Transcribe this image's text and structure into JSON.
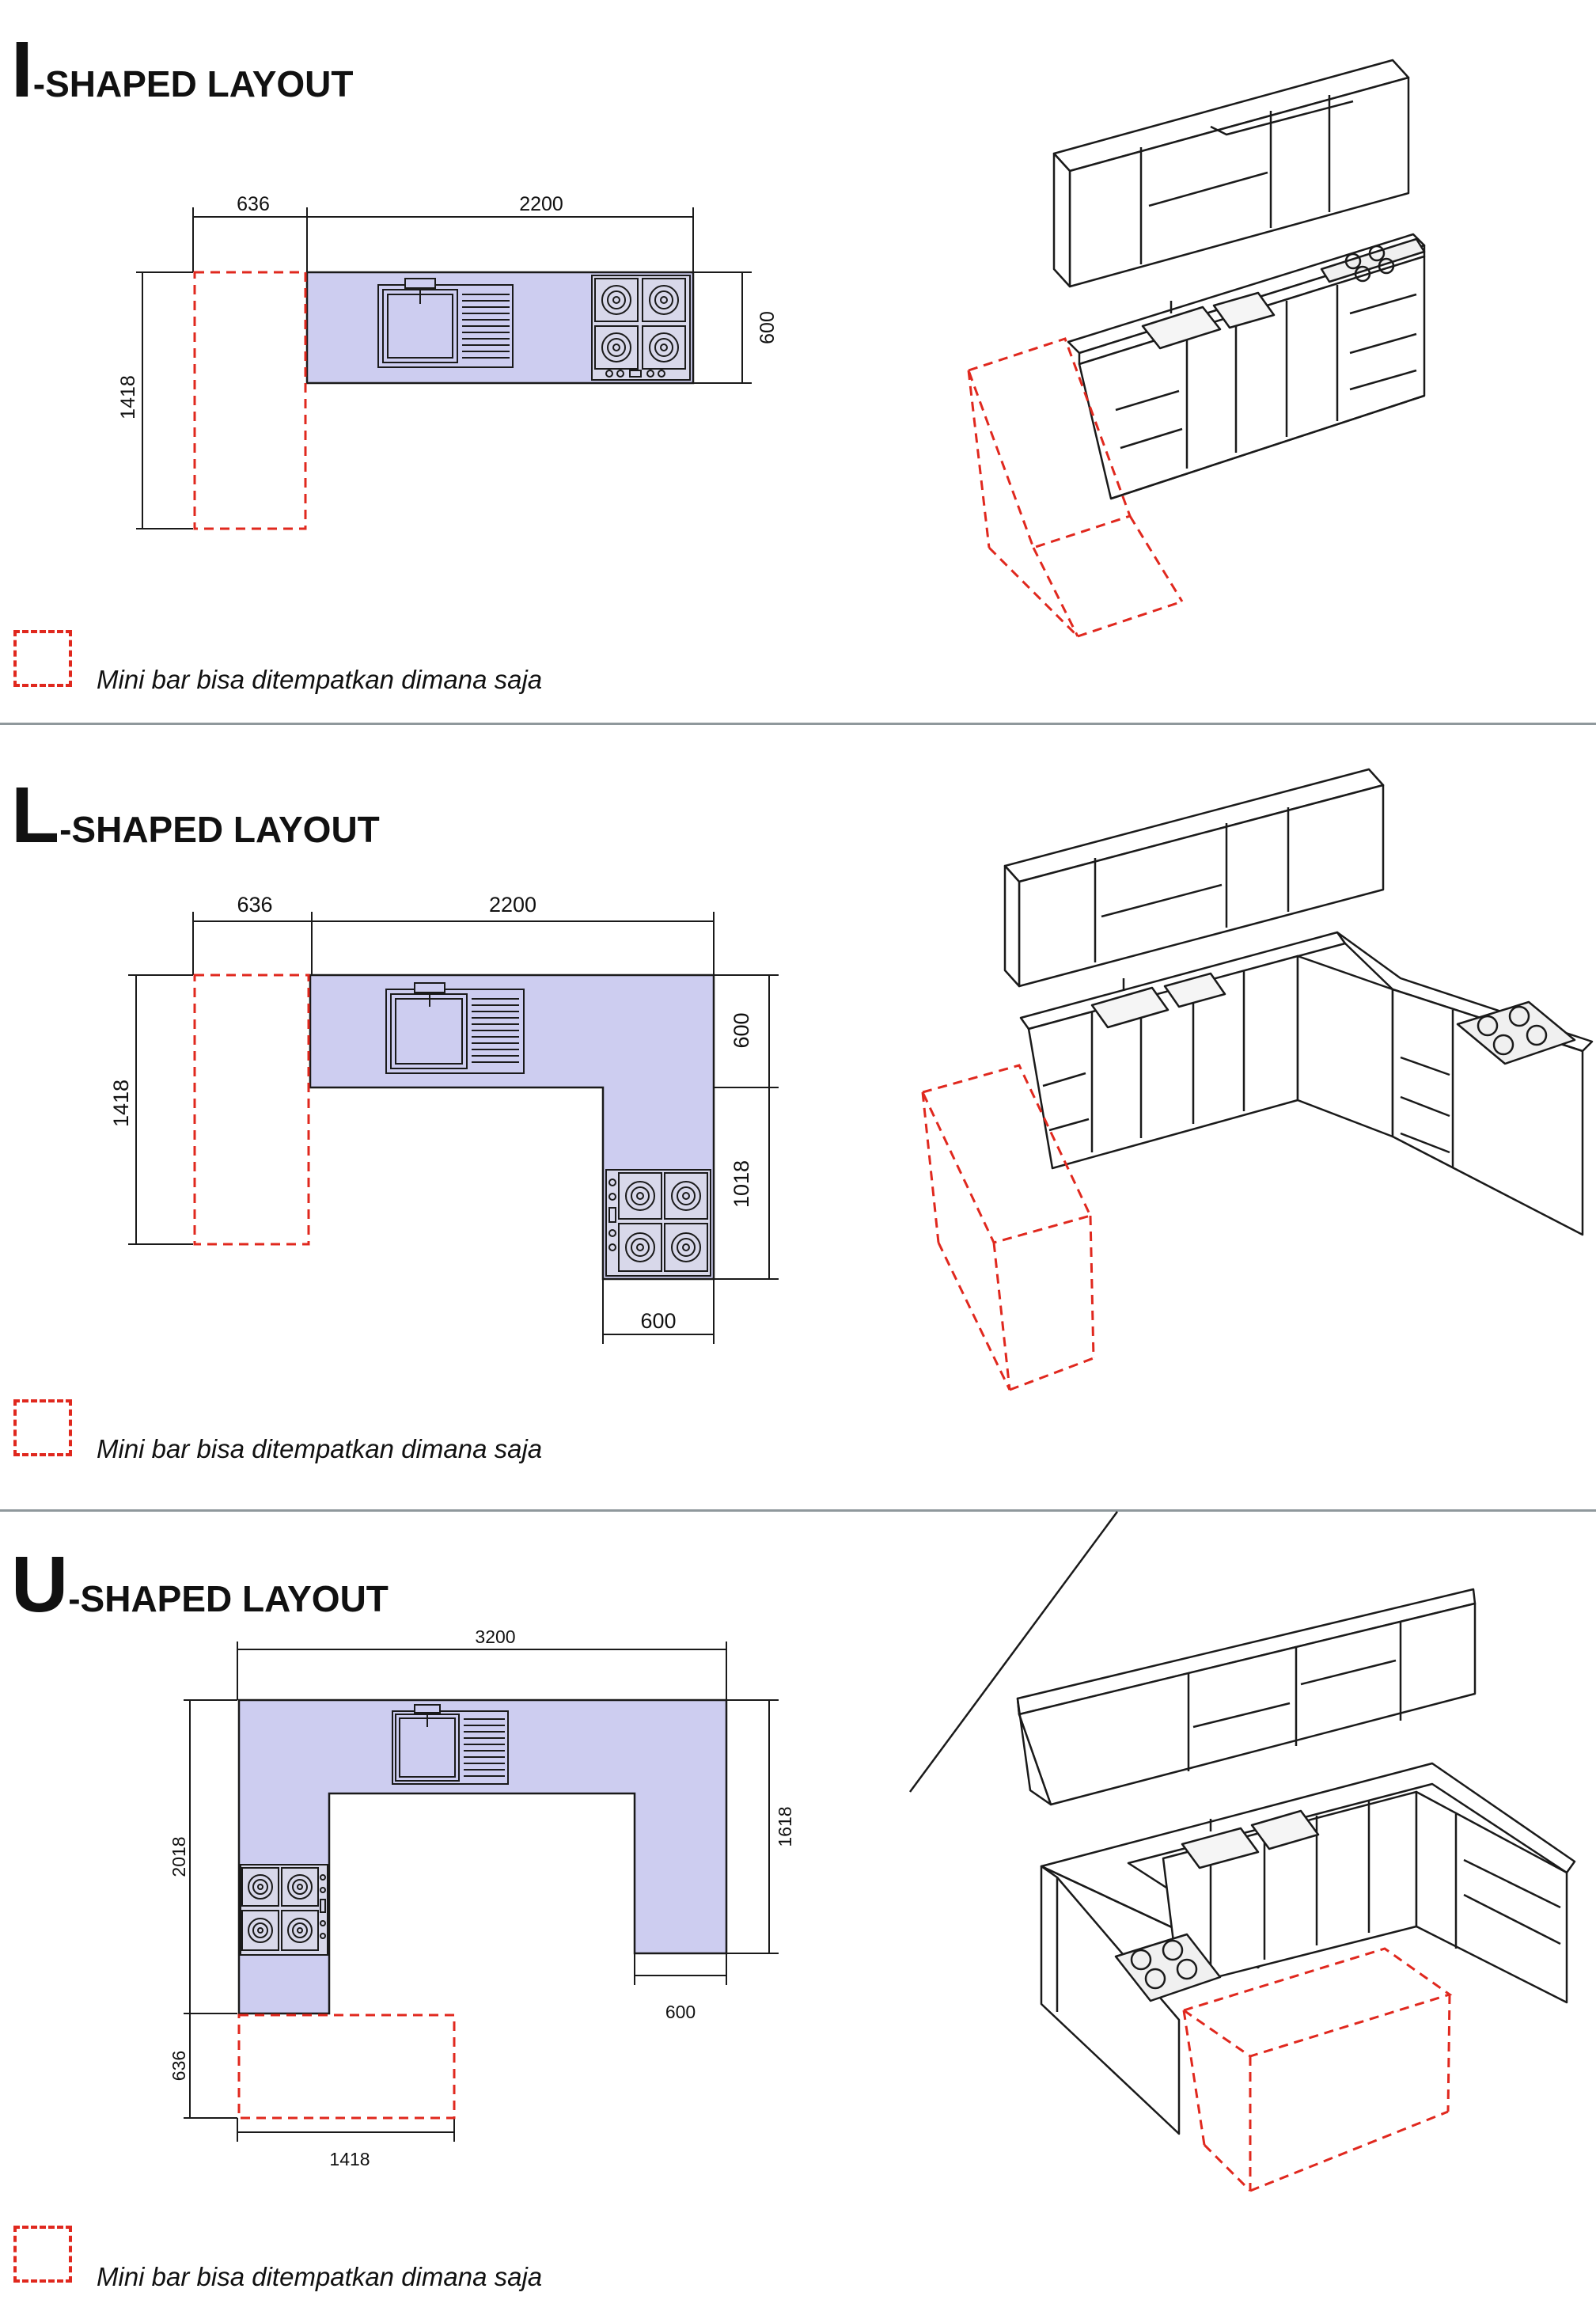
{
  "sections": [
    {
      "letter": "I",
      "title_rest": "-SHAPED LAYOUT",
      "dims": {
        "left_width": "636",
        "top_width": "2200",
        "height": "1418",
        "depth": "600"
      },
      "legend": "Mini bar bisa ditempatkan dimana saja"
    },
    {
      "letter": "L",
      "title_rest": "-SHAPED LAYOUT",
      "dims": {
        "left_width": "636",
        "top_width": "2200",
        "height": "1418",
        "depth": "600",
        "leg_length": "1018",
        "leg_width": "600"
      },
      "legend": "Mini bar bisa ditempatkan dimana saja"
    },
    {
      "letter": "U",
      "title_rest": "-SHAPED LAYOUT",
      "dims": {
        "top_width": "3200",
        "left_height": "2018",
        "right_height": "1618",
        "right_width": "600",
        "bar_depth": "636",
        "bar_width": "1418"
      },
      "legend": "Mini bar bisa ditempatkan dimana saja"
    }
  ],
  "colors": {
    "counter_fill": "#cdcdf0",
    "minibar_dash": "#e0281e",
    "divider": "#8f989c",
    "line": "#1a1a1a"
  }
}
